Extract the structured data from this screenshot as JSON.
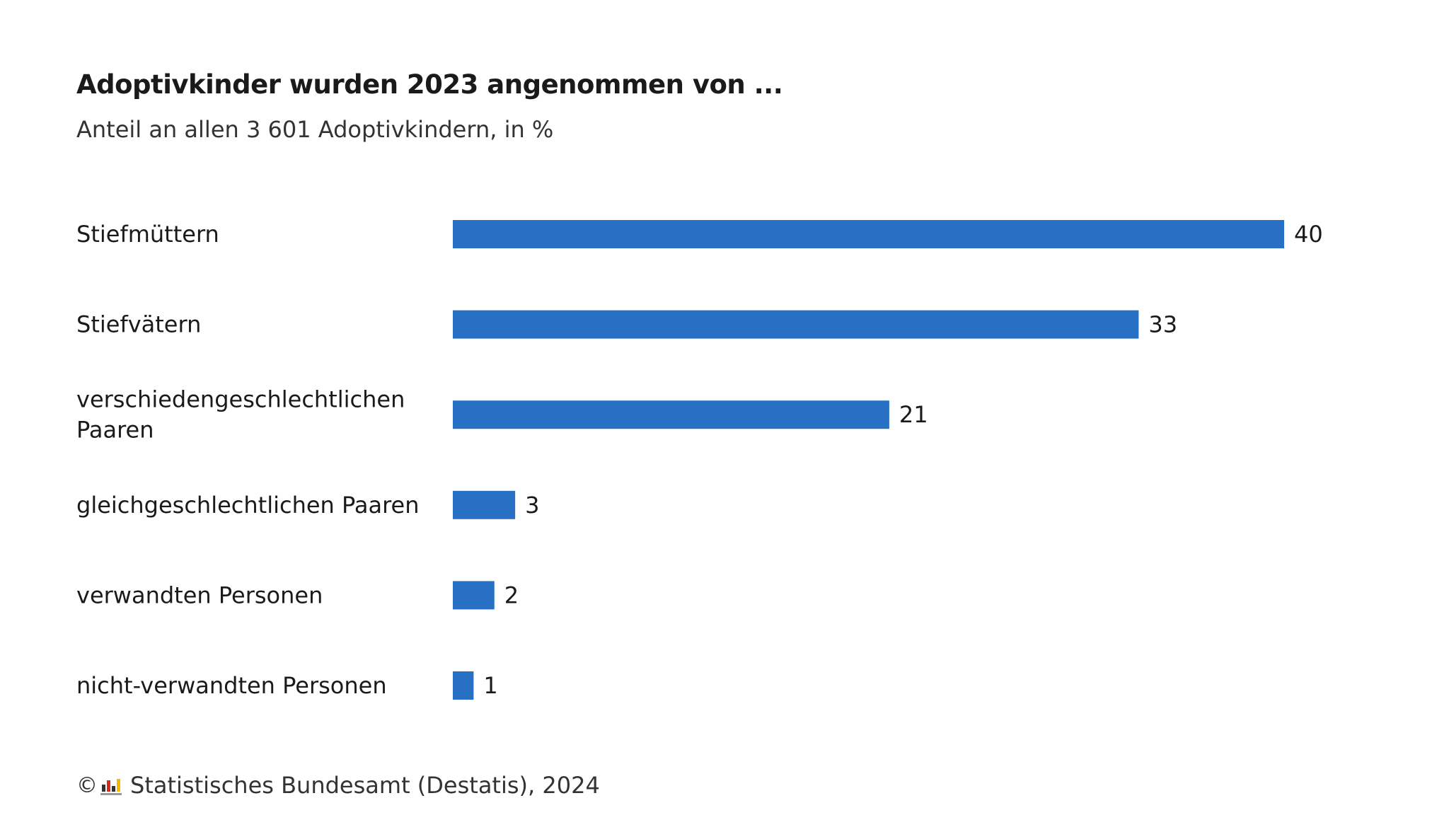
{
  "chart_data": {
    "type": "bar",
    "orientation": "horizontal",
    "title": "Adoptivkinder wurden 2023 angenommen von ...",
    "subtitle": "Anteil an allen 3 601 Adoptivkindern, in %",
    "categories": [
      [
        "Stiefmüttern"
      ],
      [
        "Stiefvätern"
      ],
      [
        "verschiedengeschlechtlichen",
        "Paaren"
      ],
      [
        "gleichgeschlechtlichen Paaren"
      ],
      [
        "verwandten Personen"
      ],
      [
        "nicht-verwandten Personen"
      ]
    ],
    "values": [
      40,
      33,
      21,
      3,
      2,
      1
    ],
    "bar_color": "#2770c4",
    "grid": false,
    "legend": "none"
  },
  "footer": {
    "copyright_symbol": "©",
    "logo_icon": "destatis-logo-icon",
    "source": "Statistisches Bundesamt (Destatis), 2024"
  }
}
